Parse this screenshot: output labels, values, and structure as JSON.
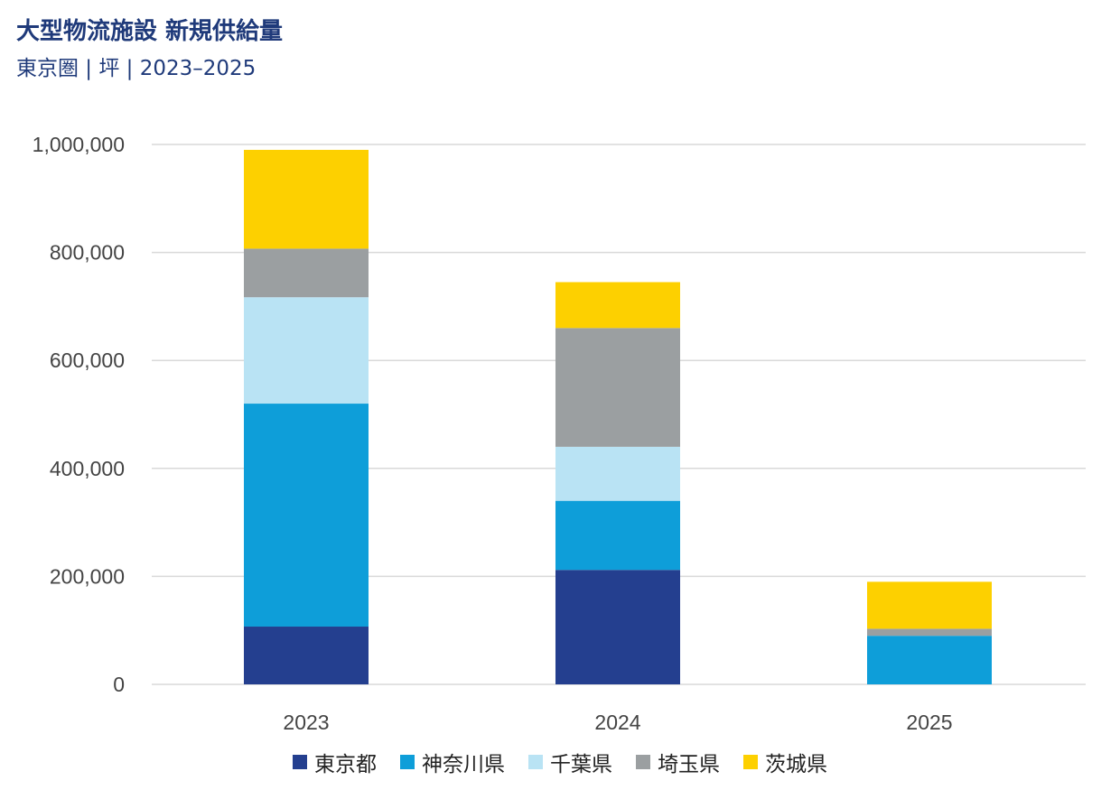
{
  "chart_data": {
    "type": "bar",
    "stacked": true,
    "title": "大型物流施設 新規供給量",
    "subtitle": "東京圏 | 坪 | 2023–2025",
    "categories": [
      "2023",
      "2024",
      "2025"
    ],
    "ylim": [
      0,
      1000000
    ],
    "yticks": [
      "0",
      "200,000",
      "400,000",
      "600,000",
      "800,000",
      "1,000,000"
    ],
    "ytick_values": [
      0,
      200000,
      400000,
      600000,
      800000,
      1000000
    ],
    "grid": true,
    "legend_position": "bottom",
    "series": [
      {
        "name": "東京都",
        "color": "#243f8f",
        "values": [
          107000,
          212000,
          0
        ]
      },
      {
        "name": "神奈川県",
        "color": "#0e9ed9",
        "values": [
          413000,
          128000,
          90000
        ]
      },
      {
        "name": "千葉県",
        "color": "#b9e3f4",
        "values": [
          197000,
          100000,
          0
        ]
      },
      {
        "name": "埼玉県",
        "color": "#9b9fa1",
        "values": [
          90000,
          220000,
          13000
        ]
      },
      {
        "name": "茨城県",
        "color": "#fdd000",
        "values": [
          183000,
          85000,
          87000
        ]
      }
    ]
  }
}
